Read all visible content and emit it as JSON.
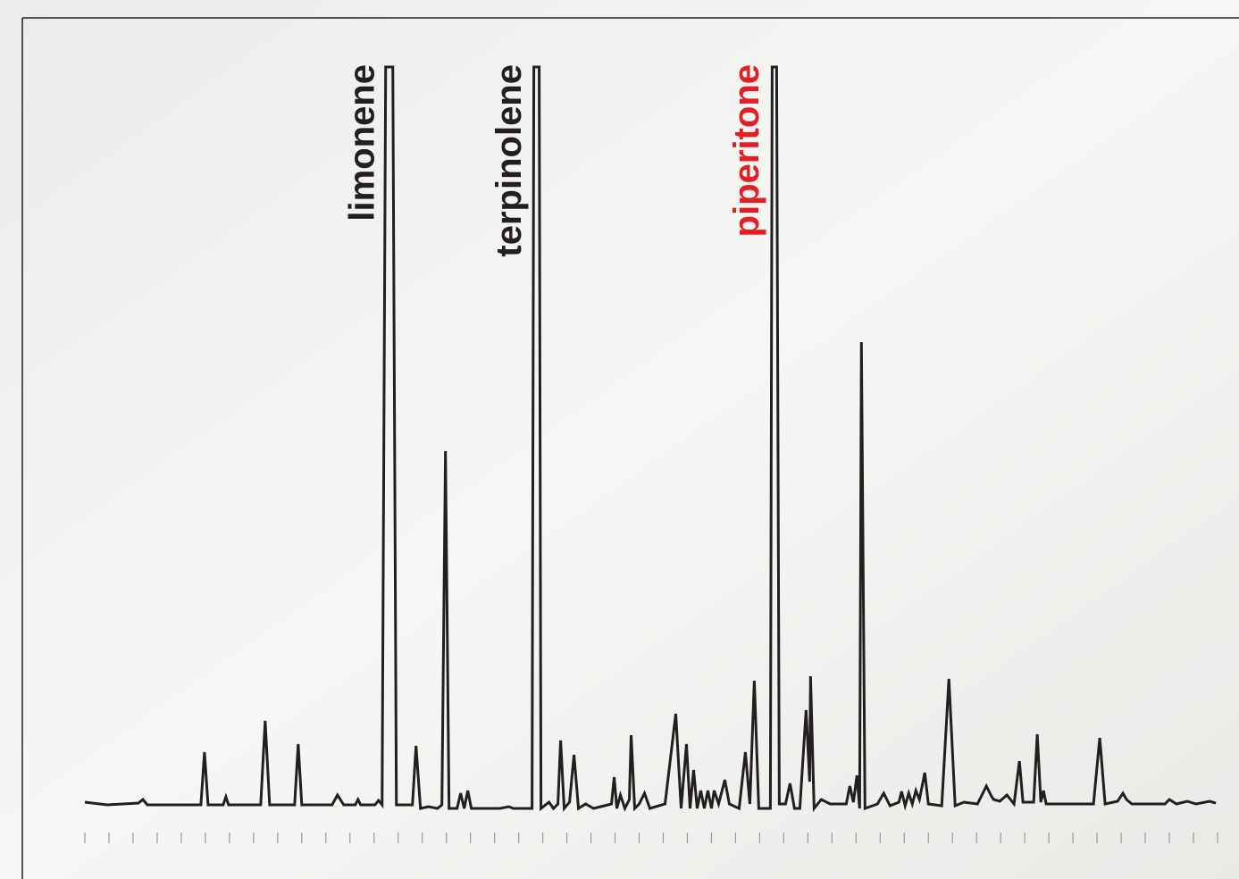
{
  "chart_data": {
    "type": "line",
    "annotations": [
      {
        "text": "limonene",
        "x": 341,
        "color": "#231f20"
      },
      {
        "text": "terpinolene",
        "x": 506,
        "color": "#231f20"
      },
      {
        "text": "piperitone",
        "x": 772,
        "color": "#e31e24"
      }
    ],
    "xlim": [
      0,
      1269
    ],
    "xticks": [
      0,
      27,
      54,
      81,
      108,
      135,
      162,
      189,
      216,
      243,
      270,
      297,
      324,
      351,
      378,
      405,
      432,
      459,
      486,
      513,
      540,
      567,
      594,
      621,
      648,
      675,
      702,
      729,
      756,
      783,
      810,
      837,
      864,
      891,
      918,
      945,
      972,
      999,
      1026,
      1053,
      1080,
      1107,
      1134,
      1161,
      1188,
      1215,
      1242,
      1269
    ],
    "ylim": [
      0,
      825
    ],
    "series": [
      {
        "color": "#231f20",
        "x": [
          0,
          25,
          60,
          65,
          70,
          130,
          134,
          138,
          155,
          158,
          161,
          197,
          202,
          207,
          235,
          239,
          243,
          277,
          283,
          290,
          303,
          306,
          309,
          325,
          329,
          333,
          337,
          345,
          349,
          367,
          371,
          376,
          385,
          395,
          400,
          404,
          408,
          417,
          421,
          425,
          429,
          433,
          465,
          475,
          480,
          501,
          503,
          509,
          511,
          520,
          525,
          530,
          533,
          537,
          543,
          548,
          553,
          561,
          570,
          590,
          593,
          596,
          600,
          605,
          610,
          612,
          616,
          621,
          627,
          633,
          650,
          662,
          668,
          674,
          678,
          682,
          686,
          690,
          694,
          698,
          702,
          705,
          710,
          717,
          722,
          733,
          740,
          745,
          750,
          755,
          768,
          770,
          775,
          778,
          785,
          790,
          795,
          801,
          808,
          812,
          813,
          817,
          825,
          835,
          853,
          857,
          861,
          865,
          868,
          870,
          874,
          888,
          895,
          902,
          912,
          915,
          919,
          923,
          927,
          931,
          935,
          941,
          945,
          960,
          968,
          975,
          985,
          1000,
          1010,
          1015,
          1018,
          1025,
          1033,
          1041,
          1047,
          1051,
          1063,
          1067,
          1071,
          1074,
          1077,
          1130,
          1137,
          1143,
          1157,
          1163,
          1167,
          1173,
          1210,
          1215,
          1223,
          1235,
          1245,
          1260,
          1267
        ],
        "values": [
          2,
          -1,
          1,
          5,
          -1,
          -1,
          58,
          -1,
          -1,
          8,
          -1,
          -1,
          93,
          -1,
          -1,
          67,
          -1,
          -1,
          10,
          -1,
          -1,
          5,
          -1,
          -1,
          4,
          -1,
          825,
          825,
          -1,
          -1,
          65,
          -5,
          -3,
          -5,
          -1,
          395,
          -5,
          -5,
          12,
          -5,
          15,
          -5,
          -5,
          -3,
          -5,
          -5,
          825,
          825,
          -5,
          2,
          -5,
          0,
          71,
          -5,
          2,
          55,
          -5,
          0,
          -5,
          0,
          30,
          -5,
          10,
          -5,
          5,
          77,
          -5,
          0,
          12,
          -5,
          0,
          101,
          -5,
          67,
          -5,
          38,
          -5,
          15,
          -5,
          15,
          -5,
          15,
          0,
          27,
          0,
          -5,
          58,
          0,
          138,
          -5,
          -5,
          825,
          825,
          0,
          0,
          23,
          -5,
          -5,
          105,
          25,
          143,
          -5,
          5,
          0,
          0,
          20,
          2,
          32,
          -5,
          517,
          -5,
          0,
          12,
          -2,
          2,
          14,
          -2,
          12,
          0,
          15,
          5,
          35,
          0,
          -2,
          140,
          -2,
          2,
          0,
          20,
          10,
          5,
          3,
          10,
          0,
          48,
          2,
          2,
          78,
          2,
          15,
          0,
          0,
          74,
          0,
          3,
          12,
          5,
          0,
          0,
          5,
          0,
          3,
          0,
          3,
          1
        ]
      }
    ]
  }
}
